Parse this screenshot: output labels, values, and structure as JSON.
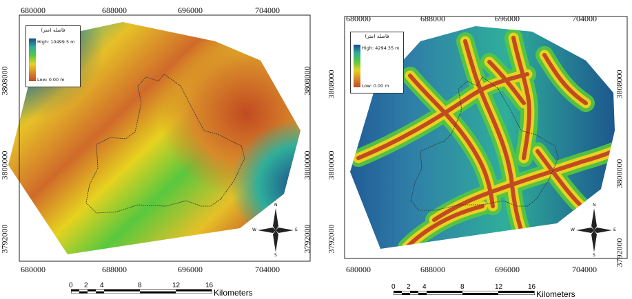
{
  "maps": [
    {
      "x_ticks_top": [
        "680000",
        "688000",
        "696000",
        "704000"
      ],
      "x_ticks_bottom": [
        "680000",
        "688000",
        "696000",
        "704000"
      ],
      "y_ticks_left": [
        "3808000",
        "3800000",
        "3792000"
      ],
      "y_ticks_right": [
        "3808000",
        "3800000",
        "3792000"
      ],
      "legend": {
        "title": "فاصله (متر)",
        "high": "High: 10499.5 m",
        "low": "Low: 0.00 m"
      }
    },
    {
      "x_ticks_top": [
        "680000",
        "688000",
        "696000",
        "704000"
      ],
      "x_ticks_bottom": [
        "680000",
        "688000",
        "696000",
        "704000"
      ],
      "y_ticks_left": [
        "3808000",
        "3800000",
        "3792000"
      ],
      "y_ticks_right": [
        "3808000",
        "3800000",
        "3792000"
      ],
      "legend": {
        "title": "فاصله (متر)",
        "high": "High: 4294.35 m",
        "low": "Low: 0.00 m"
      }
    }
  ],
  "scalebar": {
    "labels": [
      "0",
      "2",
      "4",
      "8",
      "12",
      "16"
    ],
    "unit": "Kilometers"
  },
  "compass": {
    "n": "N",
    "s": "S",
    "e": "E",
    "w": "W"
  },
  "colors": {
    "high": "#1a4a8c",
    "mid1": "#2fae9a",
    "mid2": "#58c83e",
    "mid3": "#e6d21f",
    "low": "#c24a22"
  }
}
